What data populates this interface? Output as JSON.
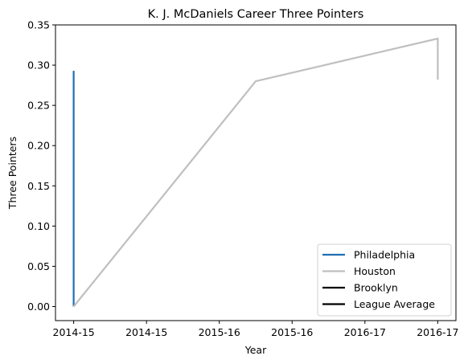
{
  "chart_data": {
    "type": "line",
    "title": "K. J. McDaniels Career Three Pointers",
    "xlabel": "Year",
    "ylabel": "Three Pointers",
    "ylim": [
      -0.0175,
      0.35
    ],
    "xlim": [
      -0.1,
      2.1
    ],
    "x_tick_labels": [
      {
        "x": 0.0,
        "label": "2014-15"
      },
      {
        "x": 0.4,
        "label": "2014-15"
      },
      {
        "x": 0.8,
        "label": "2015-16"
      },
      {
        "x": 1.2,
        "label": "2015-16"
      },
      {
        "x": 1.6,
        "label": "2016-17"
      },
      {
        "x": 2.0,
        "label": "2016-17"
      }
    ],
    "y_ticks": [
      0.0,
      0.05,
      0.1,
      0.15,
      0.2,
      0.25,
      0.3,
      0.35
    ],
    "y_tick_labels": [
      "0.00",
      "0.05",
      "0.10",
      "0.15",
      "0.20",
      "0.25",
      "0.30",
      "0.35"
    ],
    "grid": false,
    "legend_position": "bottom-right",
    "series": [
      {
        "name": "Philadelphia",
        "color": "#1f6fb2",
        "x": [
          0.0,
          0.0
        ],
        "y": [
          0.0,
          0.293
        ]
      },
      {
        "name": "Houston",
        "color": "#bfbfbf",
        "x": [
          0.0,
          1.0,
          2.0,
          2.0
        ],
        "y": [
          0.0,
          0.28,
          0.333,
          0.282
        ]
      },
      {
        "name": "Brooklyn",
        "color": "#000000",
        "x": [],
        "y": []
      },
      {
        "name": "League Average",
        "color": "#000000",
        "x": [],
        "y": []
      }
    ]
  }
}
